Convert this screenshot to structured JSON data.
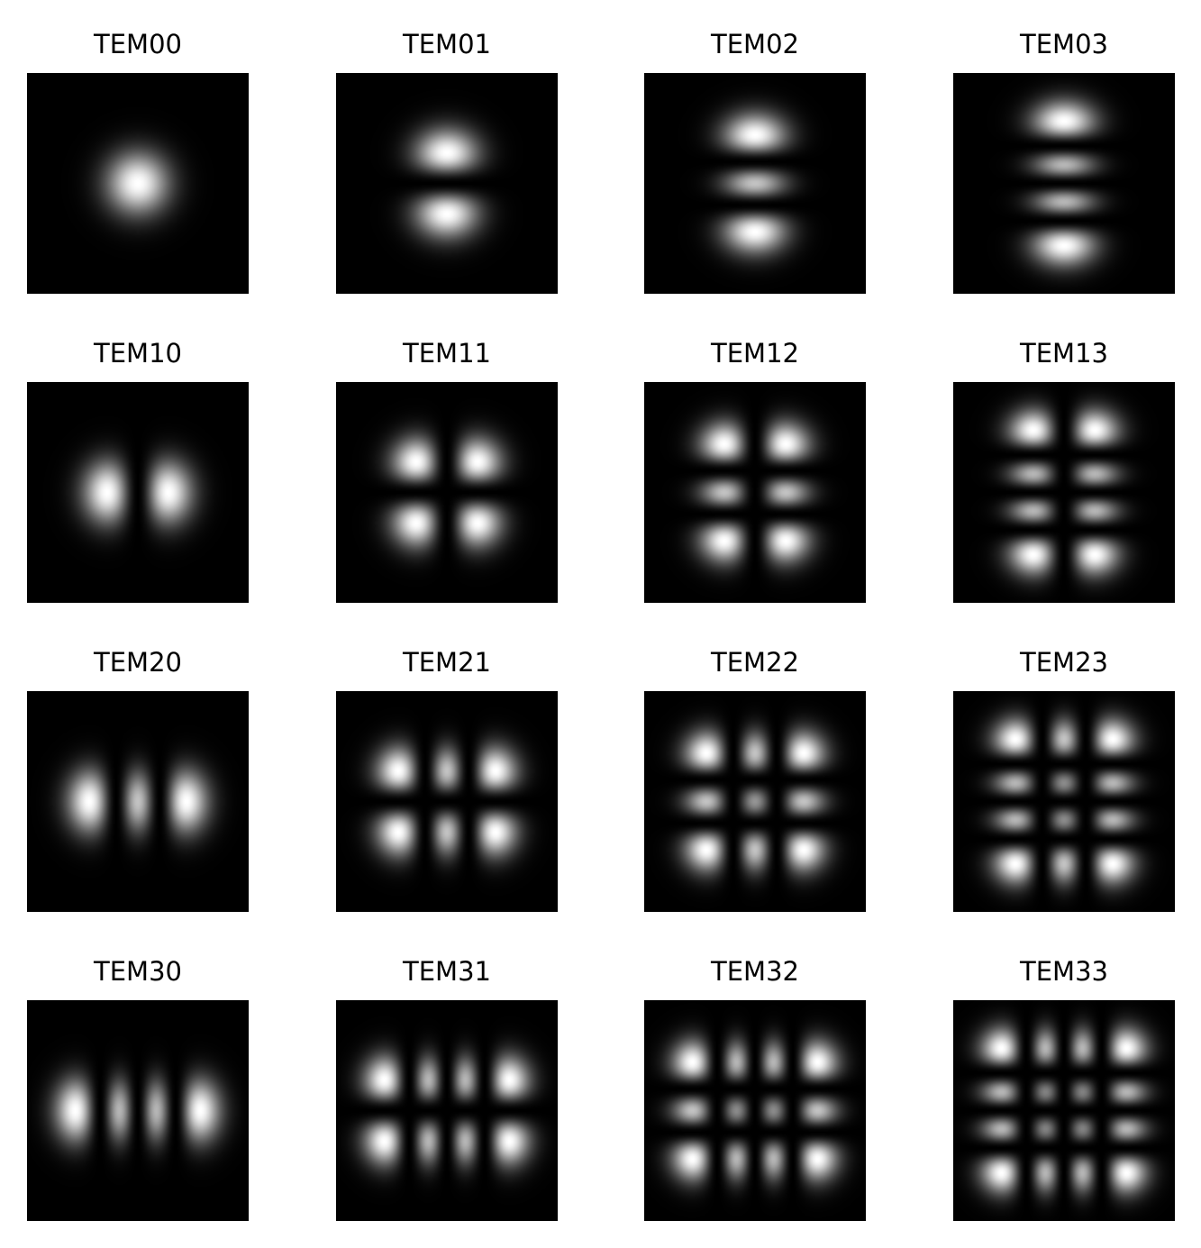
{
  "chart_data": {
    "type": "heatmap",
    "colormap": "gray",
    "grid": false,
    "axes_visible": false,
    "layout": "4x4 grid of panels",
    "panels": [
      {
        "title": "TEM00",
        "m": 0,
        "n": 0
      },
      {
        "title": "TEM01",
        "m": 0,
        "n": 1
      },
      {
        "title": "TEM02",
        "m": 0,
        "n": 2
      },
      {
        "title": "TEM03",
        "m": 0,
        "n": 3
      },
      {
        "title": "TEM10",
        "m": 1,
        "n": 0
      },
      {
        "title": "TEM11",
        "m": 1,
        "n": 1
      },
      {
        "title": "TEM12",
        "m": 1,
        "n": 2
      },
      {
        "title": "TEM13",
        "m": 1,
        "n": 3
      },
      {
        "title": "TEM20",
        "m": 2,
        "n": 0
      },
      {
        "title": "TEM21",
        "m": 2,
        "n": 1
      },
      {
        "title": "TEM22",
        "m": 2,
        "n": 2
      },
      {
        "title": "TEM23",
        "m": 2,
        "n": 3
      },
      {
        "title": "TEM30",
        "m": 3,
        "n": 0
      },
      {
        "title": "TEM31",
        "m": 3,
        "n": 1
      },
      {
        "title": "TEM32",
        "m": 3,
        "n": 2
      },
      {
        "title": "TEM33",
        "m": 3,
        "n": 3
      }
    ]
  },
  "colors": {
    "background": "#ffffff",
    "image_low": "#000000",
    "image_high": "#ffffff",
    "title_text": "#000000"
  }
}
